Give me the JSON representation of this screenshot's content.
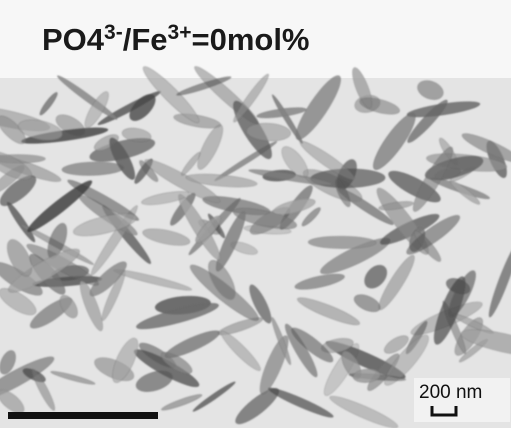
{
  "label": {
    "formula": "PO4",
    "charge1": "3-",
    "ion": "/Fe",
    "charge2": "3+",
    "ratio": "=0mol%"
  },
  "scale_bar": {
    "text": "200 nm"
  }
}
